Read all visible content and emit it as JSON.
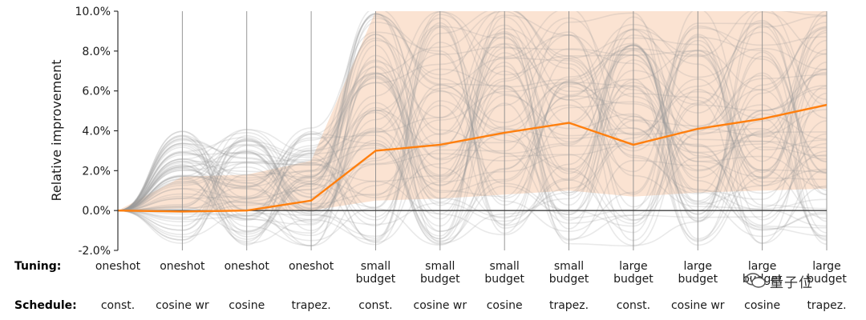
{
  "chart_data": {
    "type": "line",
    "ylabel": "Relative improvement",
    "ylim": [
      -2.0,
      10.0
    ],
    "yticks": [
      -2.0,
      0.0,
      2.0,
      4.0,
      6.0,
      8.0,
      10.0
    ],
    "ytick_labels": [
      "-2.0%",
      "0.0%",
      "2.0%",
      "4.0%",
      "6.0%",
      "8.0%",
      "10.0%"
    ],
    "grid": "vertical",
    "row_labels": {
      "tuning": "Tuning:",
      "schedule": "Schedule:"
    },
    "categories": [
      {
        "tuning": [
          "oneshot"
        ],
        "schedule": "const."
      },
      {
        "tuning": [
          "oneshot"
        ],
        "schedule": "cosine wr"
      },
      {
        "tuning": [
          "oneshot"
        ],
        "schedule": "cosine"
      },
      {
        "tuning": [
          "oneshot"
        ],
        "schedule": "trapez."
      },
      {
        "tuning": [
          "small",
          "budget"
        ],
        "schedule": "const."
      },
      {
        "tuning": [
          "small",
          "budget"
        ],
        "schedule": "cosine wr"
      },
      {
        "tuning": [
          "small",
          "budget"
        ],
        "schedule": "cosine"
      },
      {
        "tuning": [
          "small",
          "budget"
        ],
        "schedule": "trapez."
      },
      {
        "tuning": [
          "large",
          "budget"
        ],
        "schedule": "const."
      },
      {
        "tuning": [
          "large",
          "budget"
        ],
        "schedule": "cosine wr"
      },
      {
        "tuning": [
          "large",
          "budget"
        ],
        "schedule": "cosine"
      },
      {
        "tuning": [
          "large",
          "budget"
        ],
        "schedule": "trapez."
      }
    ],
    "series": [
      {
        "values": [
          0.0,
          -0.05,
          0.0,
          0.5,
          3.0,
          3.3,
          3.9,
          4.4,
          3.3,
          4.1,
          4.6,
          5.3
        ],
        "color": "#ff7f0e"
      }
    ],
    "band": {
      "lower": [
        0.0,
        0.1,
        0.0,
        0.0,
        0.5,
        0.6,
        0.8,
        1.0,
        0.7,
        0.9,
        1.0,
        1.1
      ],
      "upper": [
        0.0,
        1.7,
        1.8,
        2.5,
        10.0,
        10.0,
        10.0,
        10.0,
        10.0,
        10.0,
        10.0,
        10.0
      ],
      "color": "#fbe3d2"
    },
    "background_lines_color": "#999999"
  },
  "watermark": {
    "text": "量子位",
    "icon": "wechat-icon"
  }
}
